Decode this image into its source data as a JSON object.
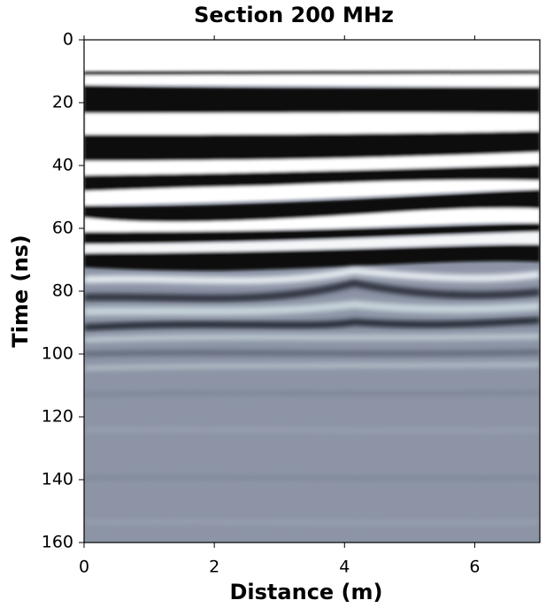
{
  "chart_data": {
    "type": "radargram",
    "title": "Section 200 MHz",
    "x_label": "Distance (m)",
    "y_label": "Time (ns)",
    "xlim": [
      0,
      7
    ],
    "xticks": [
      0,
      2,
      4,
      6
    ],
    "ylim": [
      160,
      0
    ],
    "yticks": [
      0,
      20,
      40,
      60,
      80,
      100,
      120,
      140,
      160
    ]
  }
}
